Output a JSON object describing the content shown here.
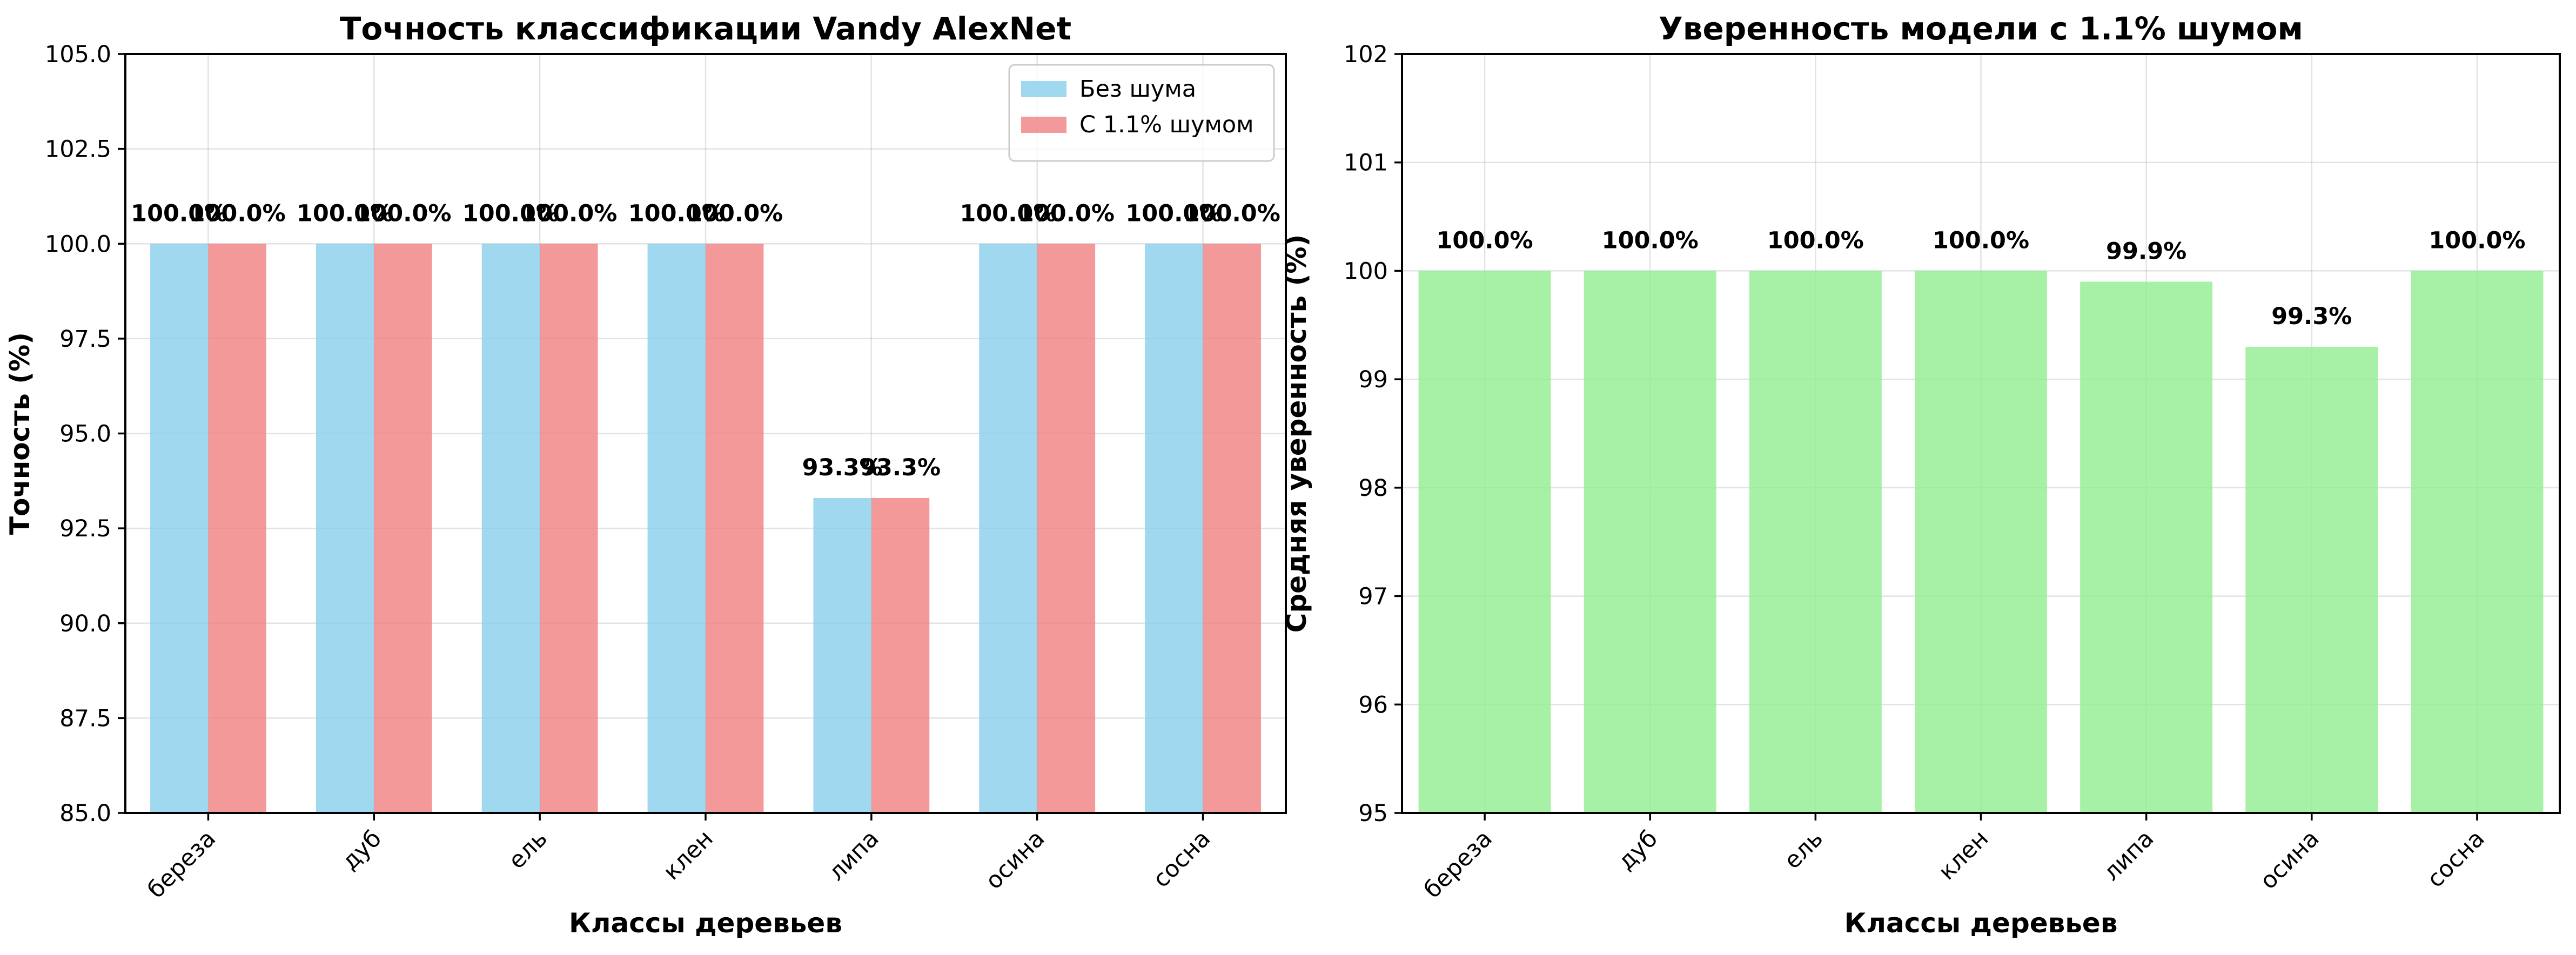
{
  "chart_data": [
    {
      "type": "bar",
      "title": "Точность классификации Vandy AlexNet",
      "xlabel": "Классы деревьев",
      "ylabel": "Точность (%)",
      "ylim": [
        85.0,
        105.0
      ],
      "yticks": [
        "85.0",
        "87.5",
        "90.0",
        "92.5",
        "95.0",
        "97.5",
        "100.0",
        "102.5",
        "105.0"
      ],
      "categories": [
        "береза",
        "дуб",
        "ель",
        "клен",
        "липа",
        "осина",
        "сосна"
      ],
      "grid": true,
      "legend": "top-right",
      "series": [
        {
          "name": "Без шума",
          "color": "#87ceeb",
          "values": [
            100.0,
            100.0,
            100.0,
            100.0,
            93.3,
            100.0,
            100.0
          ],
          "labels": [
            "100.0%",
            "100.0%",
            "100.0%",
            "100.0%",
            "93.3%",
            "100.0%",
            "100.0%"
          ]
        },
        {
          "name": "С 1.1% шумом",
          "color": "#f08080",
          "values": [
            100.0,
            100.0,
            100.0,
            100.0,
            93.3,
            100.0,
            100.0
          ],
          "labels": [
            "100.0%",
            "100.0%",
            "100.0%",
            "100.0%",
            "93.3%",
            "100.0%",
            "100.0%"
          ]
        }
      ]
    },
    {
      "type": "bar",
      "title": "Уверенность модели с 1.1% шумом",
      "xlabel": "Классы деревьев",
      "ylabel": "Средняя уверенность (%)",
      "ylim": [
        95,
        102
      ],
      "yticks": [
        "95",
        "96",
        "97",
        "98",
        "99",
        "100",
        "101",
        "102"
      ],
      "categories": [
        "береза",
        "дуб",
        "ель",
        "клен",
        "липа",
        "осина",
        "сосна"
      ],
      "grid": true,
      "legend": "none",
      "series": [
        {
          "color": "#90ee90",
          "values": [
            100.0,
            100.0,
            100.0,
            100.0,
            99.9,
            99.3,
            100.0
          ],
          "labels": [
            "100.0%",
            "100.0%",
            "100.0%",
            "100.0%",
            "99.9%",
            "99.3%",
            "100.0%"
          ]
        }
      ]
    }
  ]
}
